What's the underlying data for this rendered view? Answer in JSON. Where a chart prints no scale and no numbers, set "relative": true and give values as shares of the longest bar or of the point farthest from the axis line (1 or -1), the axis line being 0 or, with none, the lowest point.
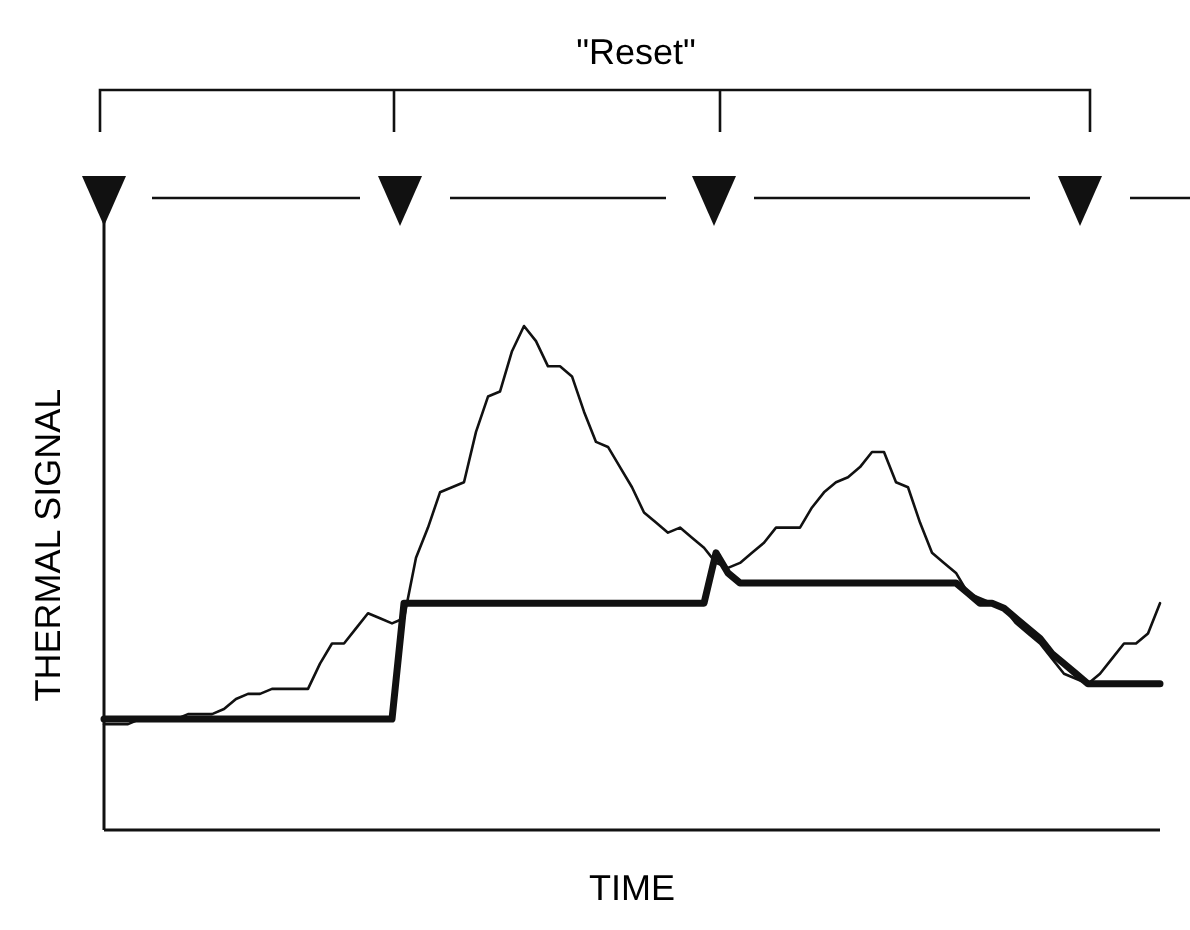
{
  "chart_data": {
    "type": "line",
    "relative": true,
    "xlabel": "TIME",
    "ylabel": "THERMAL SIGNAL",
    "annotations": [
      "\"Reset\""
    ],
    "marker": "none",
    "line_style": "solid",
    "categories": [
      null,
      null,
      null,
      null,
      null,
      null,
      null,
      null,
      null,
      null,
      null,
      null,
      null,
      null,
      null,
      null,
      null,
      null,
      null,
      null,
      null,
      null,
      null,
      null,
      null,
      null,
      null,
      null,
      null,
      null,
      null,
      null,
      null,
      null,
      null,
      null,
      null,
      null,
      null,
      null,
      null,
      null,
      null,
      null,
      null,
      null,
      null,
      null,
      null,
      null,
      null,
      null,
      null,
      null,
      null,
      null,
      null,
      null,
      null,
      null,
      null,
      null,
      null,
      null,
      null,
      null,
      null,
      null,
      null,
      null,
      null,
      null,
      null,
      null,
      null,
      null,
      null,
      null,
      null,
      null,
      null,
      null,
      null,
      null,
      null,
      null,
      null,
      null,
      null
    ],
    "series": [
      {
        "color": "#111111",
        "values": [
          0.21,
          0.21,
          0.21,
          0.22,
          0.22,
          0.22,
          0.22,
          0.23,
          0.23,
          0.23,
          0.24,
          0.26,
          0.27,
          0.27,
          0.28,
          0.28,
          0.28,
          0.28,
          0.33,
          0.37,
          0.37,
          0.4,
          0.43,
          0.42,
          0.41,
          0.42,
          0.54,
          0.6,
          0.67,
          0.68,
          0.69,
          0.79,
          0.86,
          0.87,
          0.95,
          1,
          0.97,
          0.92,
          0.92,
          0.9,
          0.83,
          0.77,
          0.76,
          0.72,
          0.68,
          0.63,
          0.61,
          0.59,
          0.6,
          0.58,
          0.56,
          0.53,
          0.52,
          0.53,
          0.55,
          0.57,
          0.6,
          0.6,
          0.6,
          0.64,
          0.67,
          0.69,
          0.7,
          0.72,
          0.75,
          0.75,
          0.69,
          0.68,
          0.61,
          0.55,
          0.53,
          0.51,
          0.47,
          0.46,
          0.45,
          0.44,
          0.41,
          0.39,
          0.37,
          0.34,
          0.31,
          0.3,
          0.29,
          0.31,
          0.34,
          0.37,
          0.37,
          0.39,
          0.45
        ]
      },
      {
        "color": "#111111",
        "values": [
          0.22,
          0.22,
          0.22,
          0.22,
          0.22,
          0.22,
          0.22,
          0.22,
          0.22,
          0.22,
          0.22,
          0.22,
          0.22,
          0.22,
          0.22,
          0.22,
          0.22,
          0.22,
          0.22,
          0.22,
          0.22,
          0.22,
          0.22,
          0.22,
          0.22,
          0.45,
          0.45,
          0.45,
          0.45,
          0.45,
          0.45,
          0.45,
          0.45,
          0.45,
          0.45,
          0.45,
          0.45,
          0.45,
          0.45,
          0.45,
          0.45,
          0.45,
          0.45,
          0.45,
          0.45,
          0.45,
          0.45,
          0.45,
          0.45,
          0.45,
          0.45,
          0.55,
          0.51,
          0.49,
          0.49,
          0.49,
          0.49,
          0.49,
          0.49,
          0.49,
          0.49,
          0.49,
          0.49,
          0.49,
          0.49,
          0.49,
          0.49,
          0.49,
          0.49,
          0.49,
          0.49,
          0.49,
          0.47,
          0.45,
          0.45,
          0.44,
          0.42,
          0.4,
          0.38,
          0.35,
          0.33,
          0.31,
          0.29,
          0.29,
          0.29,
          0.29,
          0.29,
          0.29,
          0.29
        ]
      }
    ]
  }
}
